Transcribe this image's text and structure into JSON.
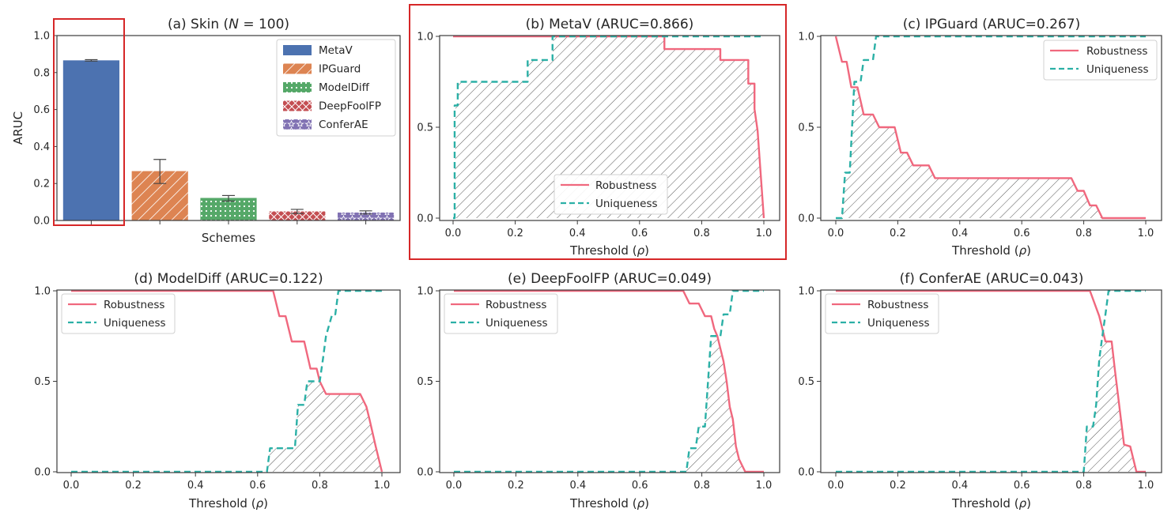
{
  "chart_data": [
    {
      "id": "a",
      "type": "bar",
      "title_prefix": "(a) Skin (",
      "title_var": "N",
      "title_suffix": " = 100)",
      "xlabel": "Schemes",
      "ylabel": "ARUC",
      "ylim": [
        0,
        1.0
      ],
      "yticks": [
        "0.0",
        "0.2",
        "0.4",
        "0.6",
        "0.8",
        "1.0"
      ],
      "highlighted": true,
      "legend_position": "top-right",
      "categories": [
        "MetaV",
        "IPGuard",
        "ModelDiff",
        "DeepFoolFP",
        "ConferAE"
      ],
      "values": [
        0.866,
        0.267,
        0.122,
        0.049,
        0.043
      ],
      "error_low": [
        0.862,
        0.2,
        0.105,
        0.038,
        0.035
      ],
      "error_high": [
        0.87,
        0.33,
        0.135,
        0.06,
        0.052
      ],
      "colors": [
        "#4c72b0",
        "#dd8452",
        "#55a868",
        "#c44e52",
        "#8172b3"
      ],
      "hatches": [
        "none",
        "diagonal",
        "dots",
        "cross",
        "stars"
      ]
    },
    {
      "id": "b",
      "type": "line",
      "title": "(b) MetaV (ARUC=0.866)",
      "xlabel_prefix": "Threshold (",
      "xlabel_var": "ρ",
      "xlabel_suffix": ")",
      "xlim": [
        0,
        1
      ],
      "ylim": [
        0,
        1
      ],
      "xticks": [
        "0.0",
        "0.2",
        "0.4",
        "0.6",
        "0.8",
        "1.0"
      ],
      "yticks": [
        "0.0",
        "0.5",
        "1.0"
      ],
      "highlighted": true,
      "legend_position": "bottom-center",
      "series": [
        {
          "name": "Robustness",
          "color": "#f0687e",
          "dash": "solid",
          "points": [
            [
              0,
              1
            ],
            [
              0.68,
              1
            ],
            [
              0.68,
              0.93
            ],
            [
              0.86,
              0.93
            ],
            [
              0.86,
              0.87
            ],
            [
              0.95,
              0.87
            ],
            [
              0.95,
              0.74
            ],
            [
              0.97,
              0.74
            ],
            [
              0.97,
              0.6
            ],
            [
              0.98,
              0.48
            ],
            [
              1.0,
              0
            ]
          ]
        },
        {
          "name": "Uniqueness",
          "color": "#2bb0a6",
          "dash": "dashed",
          "points": [
            [
              0,
              0
            ],
            [
              0.005,
              0
            ],
            [
              0.005,
              0.62
            ],
            [
              0.015,
              0.62
            ],
            [
              0.015,
              0.75
            ],
            [
              0.24,
              0.75
            ],
            [
              0.24,
              0.87
            ],
            [
              0.32,
              0.87
            ],
            [
              0.32,
              1
            ],
            [
              1,
              1
            ]
          ]
        }
      ]
    },
    {
      "id": "c",
      "type": "line",
      "title": "(c) IPGuard (ARUC=0.267)",
      "xlabel_prefix": "Threshold (",
      "xlabel_var": "ρ",
      "xlabel_suffix": ")",
      "xlim": [
        0,
        1
      ],
      "ylim": [
        0,
        1
      ],
      "xticks": [
        "0.0",
        "0.2",
        "0.4",
        "0.6",
        "0.8",
        "1.0"
      ],
      "yticks": [
        "0.0",
        "0.5",
        "1.0"
      ],
      "highlighted": false,
      "legend_position": "top-right",
      "series": [
        {
          "name": "Robustness",
          "color": "#f0687e",
          "dash": "solid",
          "points": [
            [
              0,
              1
            ],
            [
              0.02,
              0.86
            ],
            [
              0.035,
              0.86
            ],
            [
              0.05,
              0.72
            ],
            [
              0.07,
              0.72
            ],
            [
              0.09,
              0.57
            ],
            [
              0.12,
              0.57
            ],
            [
              0.14,
              0.5
            ],
            [
              0.19,
              0.5
            ],
            [
              0.21,
              0.36
            ],
            [
              0.23,
              0.36
            ],
            [
              0.25,
              0.29
            ],
            [
              0.3,
              0.29
            ],
            [
              0.32,
              0.22
            ],
            [
              0.76,
              0.22
            ],
            [
              0.78,
              0.15
            ],
            [
              0.8,
              0.15
            ],
            [
              0.82,
              0.07
            ],
            [
              0.84,
              0.07
            ],
            [
              0.86,
              0
            ],
            [
              1,
              0
            ]
          ]
        },
        {
          "name": "Uniqueness",
          "color": "#2bb0a6",
          "dash": "dashed",
          "points": [
            [
              0,
              0
            ],
            [
              0.02,
              0
            ],
            [
              0.03,
              0.25
            ],
            [
              0.045,
              0.25
            ],
            [
              0.06,
              0.75
            ],
            [
              0.08,
              0.75
            ],
            [
              0.09,
              0.87
            ],
            [
              0.12,
              0.87
            ],
            [
              0.13,
              1
            ],
            [
              1,
              1
            ]
          ]
        }
      ]
    },
    {
      "id": "d",
      "type": "line",
      "title": "(d) ModelDiff (ARUC=0.122)",
      "xlabel_prefix": "Threshold (",
      "xlabel_var": "ρ",
      "xlabel_suffix": ")",
      "xlim": [
        0,
        1
      ],
      "ylim": [
        0,
        1
      ],
      "xticks": [
        "0.0",
        "0.2",
        "0.4",
        "0.6",
        "0.8",
        "1.0"
      ],
      "yticks": [
        "0.0",
        "0.5",
        "1.0"
      ],
      "highlighted": false,
      "legend_position": "top-left",
      "series": [
        {
          "name": "Robustness",
          "color": "#f0687e",
          "dash": "solid",
          "points": [
            [
              0,
              1
            ],
            [
              0.65,
              1
            ],
            [
              0.67,
              0.86
            ],
            [
              0.69,
              0.86
            ],
            [
              0.71,
              0.72
            ],
            [
              0.75,
              0.72
            ],
            [
              0.77,
              0.57
            ],
            [
              0.79,
              0.57
            ],
            [
              0.8,
              0.5
            ],
            [
              0.82,
              0.43
            ],
            [
              0.93,
              0.43
            ],
            [
              0.95,
              0.36
            ],
            [
              0.96,
              0.29
            ],
            [
              0.98,
              0.14
            ],
            [
              1,
              0
            ]
          ]
        },
        {
          "name": "Uniqueness",
          "color": "#2bb0a6",
          "dash": "dashed",
          "points": [
            [
              0,
              0
            ],
            [
              0.63,
              0
            ],
            [
              0.64,
              0.13
            ],
            [
              0.72,
              0.13
            ],
            [
              0.73,
              0.37
            ],
            [
              0.75,
              0.37
            ],
            [
              0.76,
              0.5
            ],
            [
              0.8,
              0.5
            ],
            [
              0.81,
              0.62
            ],
            [
              0.82,
              0.75
            ],
            [
              0.84,
              0.87
            ],
            [
              0.85,
              0.87
            ],
            [
              0.86,
              1
            ],
            [
              1,
              1
            ]
          ]
        }
      ]
    },
    {
      "id": "e",
      "type": "line",
      "title": "(e) DeepFoolFP (ARUC=0.049)",
      "xlabel_prefix": "Threshold (",
      "xlabel_var": "ρ",
      "xlabel_suffix": ")",
      "xlim": [
        0,
        1
      ],
      "ylim": [
        0,
        1
      ],
      "xticks": [
        "0.0",
        "0.2",
        "0.4",
        "0.6",
        "0.8",
        "1.0"
      ],
      "yticks": [
        "0.0",
        "0.5",
        "1.0"
      ],
      "highlighted": false,
      "legend_position": "top-left",
      "series": [
        {
          "name": "Robustness",
          "color": "#f0687e",
          "dash": "solid",
          "points": [
            [
              0,
              1
            ],
            [
              0.74,
              1
            ],
            [
              0.76,
              0.93
            ],
            [
              0.79,
              0.93
            ],
            [
              0.81,
              0.86
            ],
            [
              0.83,
              0.86
            ],
            [
              0.84,
              0.79
            ],
            [
              0.85,
              0.75
            ],
            [
              0.87,
              0.61
            ],
            [
              0.88,
              0.5
            ],
            [
              0.89,
              0.36
            ],
            [
              0.9,
              0.29
            ],
            [
              0.91,
              0.14
            ],
            [
              0.92,
              0.07
            ],
            [
              0.94,
              0
            ],
            [
              1,
              0
            ]
          ]
        },
        {
          "name": "Uniqueness",
          "color": "#2bb0a6",
          "dash": "dashed",
          "points": [
            [
              0,
              0
            ],
            [
              0.75,
              0
            ],
            [
              0.76,
              0.13
            ],
            [
              0.78,
              0.13
            ],
            [
              0.79,
              0.25
            ],
            [
              0.81,
              0.25
            ],
            [
              0.82,
              0.5
            ],
            [
              0.83,
              0.75
            ],
            [
              0.86,
              0.75
            ],
            [
              0.87,
              0.87
            ],
            [
              0.89,
              0.87
            ],
            [
              0.9,
              1
            ],
            [
              1,
              1
            ]
          ]
        }
      ]
    },
    {
      "id": "f",
      "type": "line",
      "title": "(f) ConferAE (ARUC=0.043)",
      "xlabel_prefix": "Threshold (",
      "xlabel_var": "ρ",
      "xlabel_suffix": ")",
      "xlim": [
        0,
        1
      ],
      "ylim": [
        0,
        1
      ],
      "xticks": [
        "0.0",
        "0.2",
        "0.4",
        "0.6",
        "0.8",
        "1.0"
      ],
      "yticks": [
        "0.0",
        "0.5",
        "1.0"
      ],
      "highlighted": false,
      "legend_position": "top-left",
      "series": [
        {
          "name": "Robustness",
          "color": "#f0687e",
          "dash": "solid",
          "points": [
            [
              0,
              1
            ],
            [
              0.82,
              1
            ],
            [
              0.85,
              0.86
            ],
            [
              0.87,
              0.72
            ],
            [
              0.89,
              0.72
            ],
            [
              0.9,
              0.57
            ],
            [
              0.91,
              0.43
            ],
            [
              0.92,
              0.29
            ],
            [
              0.93,
              0.15
            ],
            [
              0.95,
              0.14
            ],
            [
              0.96,
              0.07
            ],
            [
              0.97,
              0
            ],
            [
              1,
              0
            ]
          ]
        },
        {
          "name": "Uniqueness",
          "color": "#2bb0a6",
          "dash": "dashed",
          "points": [
            [
              0,
              0
            ],
            [
              0.8,
              0
            ],
            [
              0.81,
              0.25
            ],
            [
              0.83,
              0.25
            ],
            [
              0.84,
              0.37
            ],
            [
              0.85,
              0.62
            ],
            [
              0.86,
              0.75
            ],
            [
              0.87,
              0.87
            ],
            [
              0.88,
              1
            ],
            [
              1,
              1
            ]
          ]
        }
      ]
    }
  ]
}
